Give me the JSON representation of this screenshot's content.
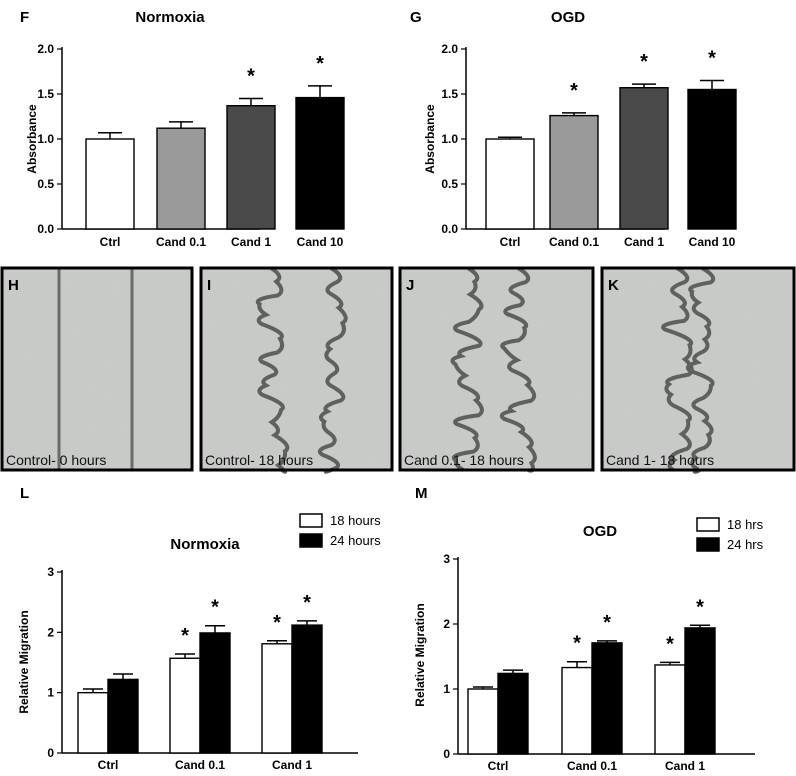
{
  "chart_data": [
    {
      "id": "F",
      "type": "bar",
      "panel_label": "F",
      "title": "Normoxia",
      "ylabel": "Absorbance",
      "ylim": [
        0,
        2.0
      ],
      "yticks": [
        "0.0",
        "0.5",
        "1.0",
        "1.5",
        "2.0"
      ],
      "ytick_values": [
        0,
        0.5,
        1.0,
        1.5,
        2.0
      ],
      "categories": [
        "Ctrl",
        "Cand 0.1",
        "Cand 1",
        "Cand 10"
      ],
      "values": [
        1.0,
        1.12,
        1.37,
        1.46
      ],
      "errors": [
        0.07,
        0.07,
        0.08,
        0.13
      ],
      "colors": [
        "#ffffff",
        "#9a9a9a",
        "#4a4a4a",
        "#000000"
      ],
      "significant": [
        "",
        "",
        "*",
        "*"
      ]
    },
    {
      "id": "G",
      "type": "bar",
      "panel_label": "G",
      "title": "OGD",
      "ylabel": "Absorbance",
      "ylim": [
        0,
        2.0
      ],
      "yticks": [
        "0.0",
        "0.5",
        "1.0",
        "1.5",
        "2.0"
      ],
      "ytick_values": [
        0,
        0.5,
        1.0,
        1.5,
        2.0
      ],
      "categories": [
        "Ctrl",
        "Cand 0.1",
        "Cand 1",
        "Cand 10"
      ],
      "values": [
        1.0,
        1.26,
        1.57,
        1.55
      ],
      "errors": [
        0.02,
        0.03,
        0.04,
        0.1
      ],
      "colors": [
        "#ffffff",
        "#9a9a9a",
        "#4a4a4a",
        "#000000"
      ],
      "significant": [
        "",
        "*",
        "*",
        "*"
      ]
    },
    {
      "id": "L",
      "type": "bar",
      "panel_label": "L",
      "title": "Normoxia",
      "ylabel": "Relative Migration",
      "ylim": [
        0,
        3
      ],
      "yticks": [
        "0",
        "1",
        "2",
        "3"
      ],
      "ytick_values": [
        0,
        1,
        2,
        3
      ],
      "categories": [
        "Ctrl",
        "Cand 0.1",
        "Cand 1"
      ],
      "series": [
        {
          "name": "18 hours",
          "values": [
            1.0,
            1.57,
            1.81
          ],
          "errors": [
            0.06,
            0.07,
            0.05
          ],
          "color": "#ffffff",
          "significant": [
            "",
            "*",
            "*"
          ]
        },
        {
          "name": "24 hours",
          "values": [
            1.22,
            1.99,
            2.12
          ],
          "errors": [
            0.09,
            0.12,
            0.07
          ],
          "color": "#000000",
          "significant": [
            "",
            "*",
            "*"
          ]
        }
      ]
    },
    {
      "id": "M",
      "type": "bar",
      "panel_label": "M",
      "title": "OGD",
      "ylabel": "Relative Migration",
      "ylim": [
        0,
        3
      ],
      "yticks": [
        "0",
        "1",
        "2",
        "3"
      ],
      "ytick_values": [
        0,
        1,
        2,
        3
      ],
      "categories": [
        "Ctrl",
        "Cand 0.1",
        "Cand 1"
      ],
      "series": [
        {
          "name": "18 hrs",
          "values": [
            1.0,
            1.33,
            1.37
          ],
          "errors": [
            0.03,
            0.09,
            0.04
          ],
          "color": "#ffffff",
          "significant": [
            "",
            "*",
            "*"
          ]
        },
        {
          "name": "24 hrs",
          "values": [
            1.24,
            1.71,
            1.94
          ],
          "errors": [
            0.05,
            0.03,
            0.04
          ],
          "color": "#000000",
          "significant": [
            "",
            "*",
            "*"
          ]
        }
      ]
    }
  ],
  "micrographs": [
    {
      "panel_label": "H",
      "caption": "Control- 0 hours"
    },
    {
      "panel_label": "I",
      "caption": "Control- 18 hours"
    },
    {
      "panel_label": "J",
      "caption": "Cand 0.1- 18 hours"
    },
    {
      "panel_label": "K",
      "caption": "Cand 1- 18 hours"
    }
  ]
}
